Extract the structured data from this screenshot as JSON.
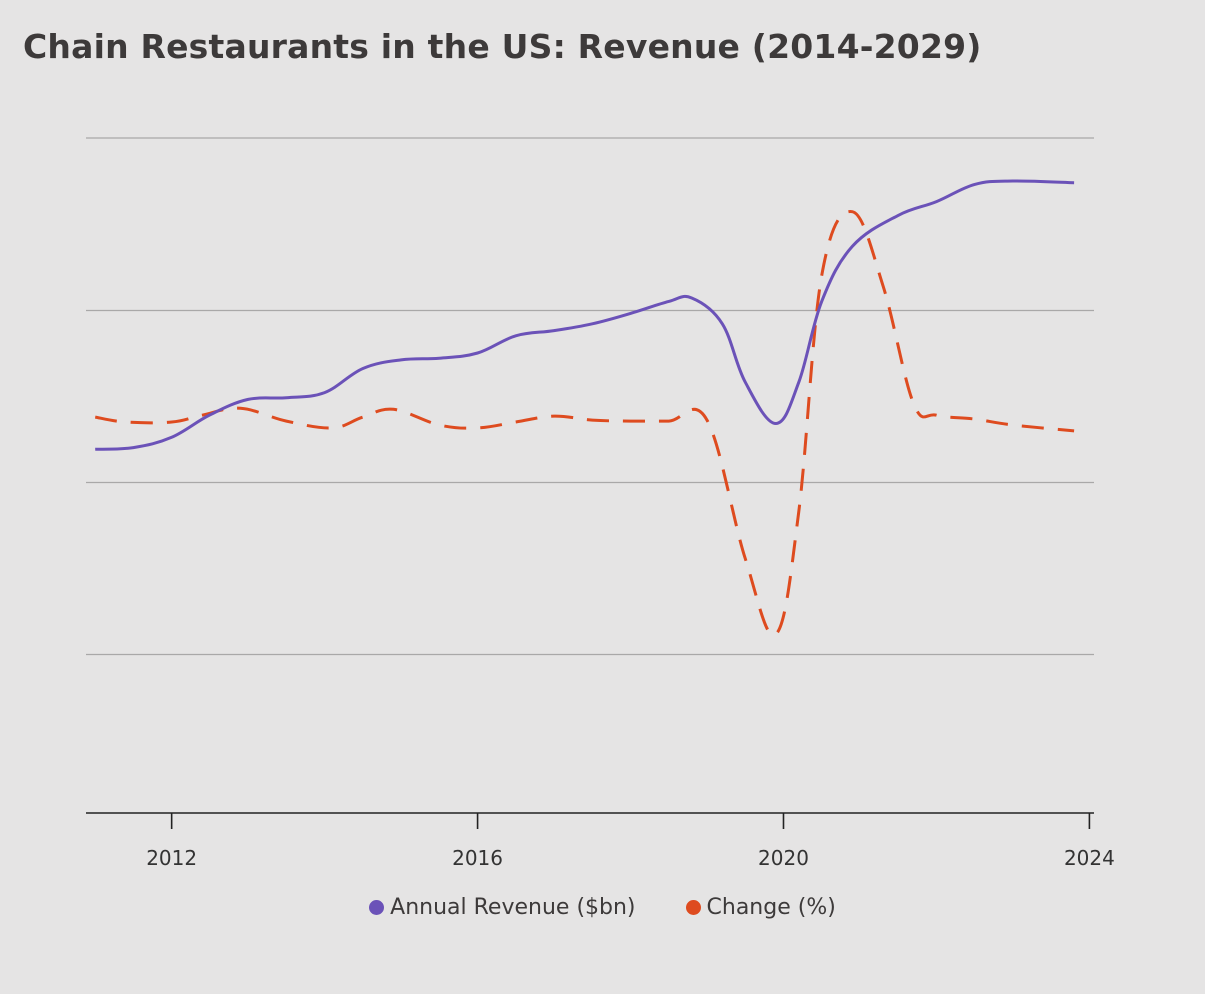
{
  "title": "Chain Restaurants in the US: Revenue (2014-2029)",
  "legend": [
    {
      "label": "Annual Revenue ($bn)",
      "color": "#6b52b8"
    },
    {
      "label": "Change (%)",
      "color": "#de4b1f"
    }
  ],
  "chart_data": {
    "type": "line",
    "title": "Chain Restaurants in the US: Revenue (2014-2029)",
    "xlabel": "",
    "ylabel": "",
    "xlim": [
      2010.88,
      2024.06
    ],
    "x_ticks": [
      2012,
      2016,
      2020,
      2024
    ],
    "y_axis_labels_shown": false,
    "grid": {
      "horizontal": true,
      "vertical": false
    },
    "legend_position": "bottom",
    "series": [
      {
        "name": "Annual Revenue ($bn)",
        "color": "#6b52b8",
        "style": "solid",
        "axis": "left",
        "ylim": [
          0,
          400
        ],
        "points": [
          [
            2011.0,
            219
          ],
          [
            2011.5,
            220
          ],
          [
            2012.0,
            226
          ],
          [
            2012.5,
            239
          ],
          [
            2013.0,
            248
          ],
          [
            2013.5,
            249
          ],
          [
            2014.0,
            252
          ],
          [
            2014.5,
            266
          ],
          [
            2015.0,
            271
          ],
          [
            2015.5,
            272
          ],
          [
            2016.0,
            275
          ],
          [
            2016.5,
            285
          ],
          [
            2017.0,
            288
          ],
          [
            2017.5,
            292
          ],
          [
            2018.0,
            298
          ],
          [
            2018.5,
            305
          ],
          [
            2018.8,
            307
          ],
          [
            2019.2,
            292
          ],
          [
            2019.5,
            258
          ],
          [
            2019.9,
            234
          ],
          [
            2020.2,
            258
          ],
          [
            2020.5,
            305
          ],
          [
            2020.9,
            337
          ],
          [
            2021.5,
            355
          ],
          [
            2022.0,
            363
          ],
          [
            2022.5,
            373
          ],
          [
            2023.0,
            375
          ],
          [
            2023.8,
            374
          ]
        ]
      },
      {
        "name": "Change (%)",
        "color": "#de4b1f",
        "style": "dashed",
        "axis": "right",
        "ylim": [
          -40,
          30
        ],
        "points": [
          [
            2011.0,
            1.6
          ],
          [
            2011.4,
            1.1
          ],
          [
            2012.0,
            1.1
          ],
          [
            2012.4,
            1.8
          ],
          [
            2012.9,
            2.5
          ],
          [
            2013.5,
            1.2
          ],
          [
            2014.1,
            0.5
          ],
          [
            2014.5,
            1.6
          ],
          [
            2014.9,
            2.4
          ],
          [
            2015.5,
            0.8
          ],
          [
            2016.0,
            0.5
          ],
          [
            2016.5,
            1.1
          ],
          [
            2017.0,
            1.7
          ],
          [
            2017.5,
            1.3
          ],
          [
            2018.0,
            1.2
          ],
          [
            2018.5,
            1.2
          ],
          [
            2019.0,
            1.3
          ],
          [
            2019.5,
            -12.8
          ],
          [
            2019.9,
            -20.5
          ],
          [
            2020.2,
            -8
          ],
          [
            2020.5,
            16
          ],
          [
            2020.9,
            22.5
          ],
          [
            2021.3,
            15
          ],
          [
            2021.7,
            3
          ],
          [
            2022.0,
            1.8
          ],
          [
            2022.5,
            1.4
          ],
          [
            2023.0,
            0.8
          ],
          [
            2023.8,
            0.2
          ]
        ]
      }
    ]
  }
}
